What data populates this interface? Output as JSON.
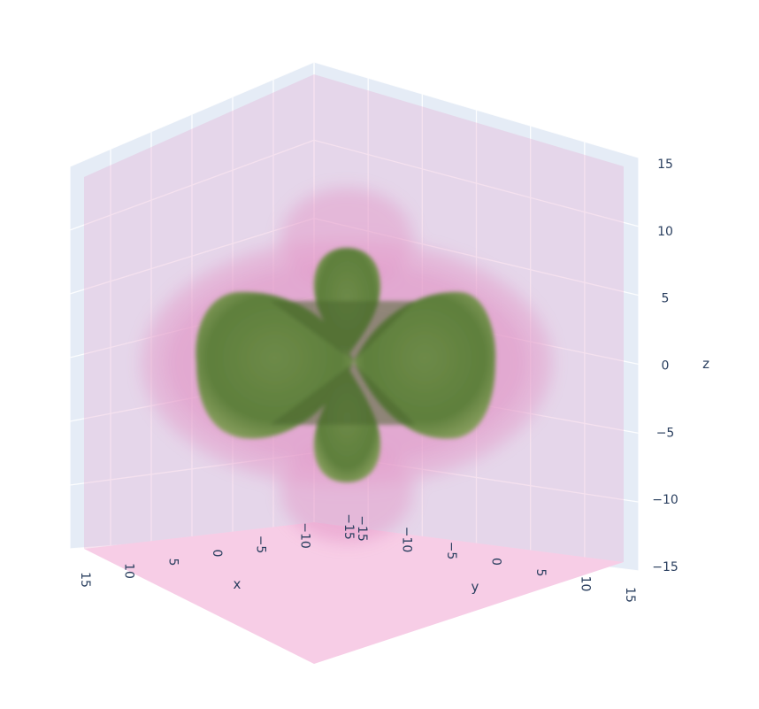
{
  "chart_data": {
    "type": "isosurface-3d",
    "title": "",
    "colors": {
      "inner_surface": "#5e7f3c",
      "outer_surface": "#e28ec3",
      "wall": "#e5ecf6",
      "floor": "#f7cde6",
      "tick_text": "#2a3f5f"
    },
    "axes": {
      "x": {
        "title": "x",
        "range": [
          -15,
          15
        ],
        "ticks": [
          "15",
          "10",
          "5",
          "0",
          "−5",
          "−10",
          "−15"
        ]
      },
      "y": {
        "title": "y",
        "range": [
          -15,
          15
        ],
        "ticks": [
          "−15",
          "−10",
          "−5",
          "0",
          "5",
          "10",
          "15"
        ]
      },
      "z": {
        "title": "z",
        "range": [
          -15,
          15
        ],
        "ticks": [
          "15",
          "10",
          "5",
          "0",
          "−5",
          "−10",
          "−15"
        ]
      }
    },
    "grid": true,
    "surfaces": [
      {
        "shape": "orbital-lobes",
        "color_role": "inner",
        "opacity": 0.9
      },
      {
        "shape": "orbital-halo",
        "color_role": "outer",
        "opacity": 0.3
      }
    ]
  }
}
